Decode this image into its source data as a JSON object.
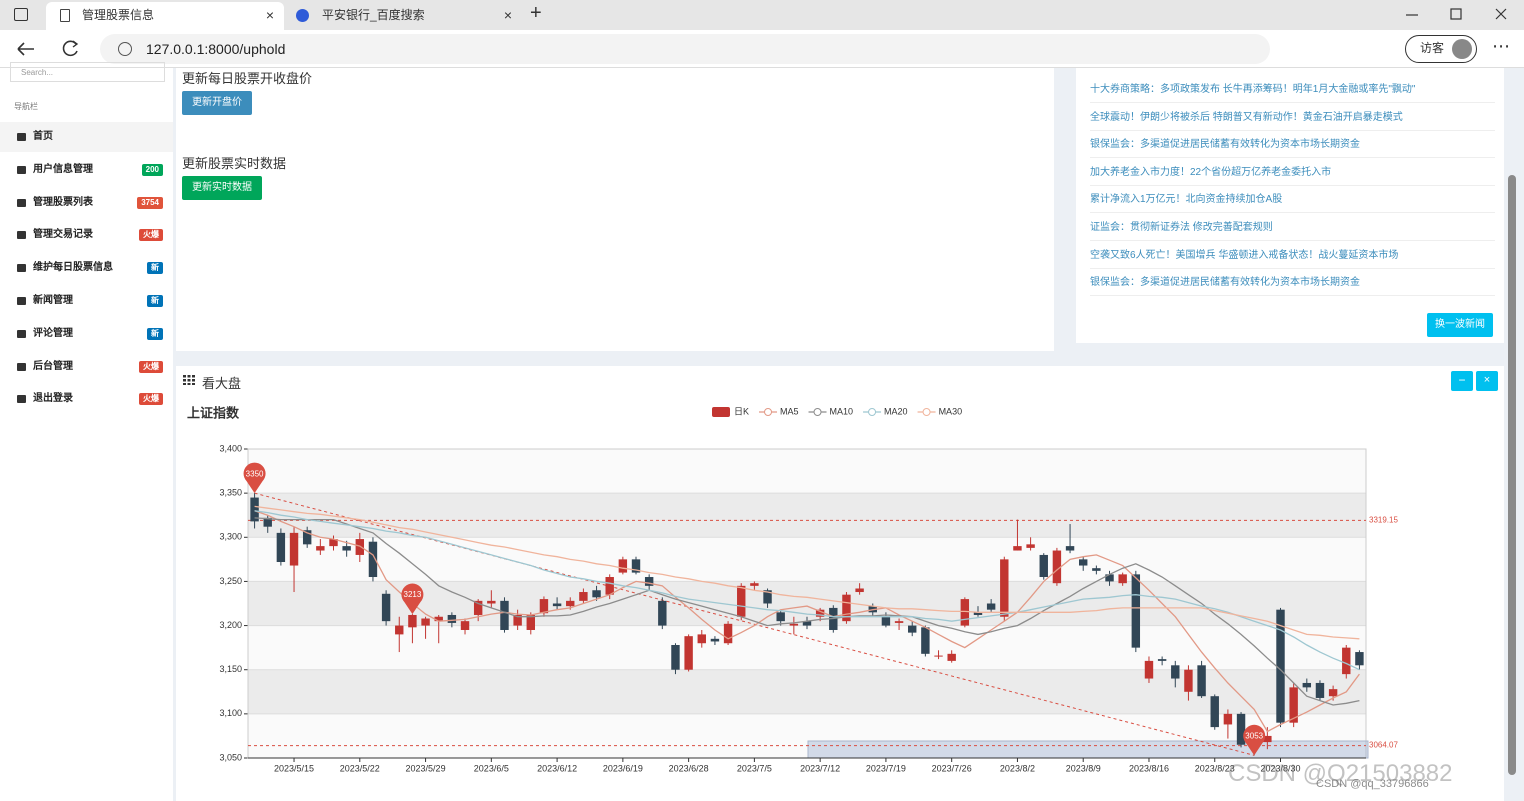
{
  "browser": {
    "tabs": [
      "管理股票信息",
      "平安银行_百度搜索"
    ],
    "url": "127.0.0.1:8000/uphold",
    "profile": "访客"
  },
  "sidebar": {
    "search_placeholder": "Search...",
    "nav_heading": "导航栏",
    "items": [
      {
        "label": "首页"
      },
      {
        "label": "用户信息管理",
        "badge": "200",
        "color": "#00a65a"
      },
      {
        "label": "管理股票列表",
        "badge": "3754",
        "color": "#e0543b"
      },
      {
        "label": "管理交易记录",
        "badge": "火爆",
        "color": "#dd4b39"
      },
      {
        "label": "维护每日股票信息",
        "badge": "新",
        "color": "#0073b7"
      },
      {
        "label": "新闻管理",
        "badge": "新",
        "color": "#0073b7"
      },
      {
        "label": "评论管理",
        "badge": "新",
        "color": "#0073b7"
      },
      {
        "label": "后台管理",
        "badge": "火爆",
        "color": "#dd4b39"
      },
      {
        "label": "退出登录",
        "badge": "火爆",
        "color": "#dd4b39"
      }
    ]
  },
  "update_panel": {
    "sections": [
      {
        "title": "更新每日股票开收盘价",
        "button": "更新开盘价",
        "color": "#3c8dbc"
      },
      {
        "title": "更新股票实时数据",
        "button": "更新实时数据",
        "color": "#00a65a"
      }
    ]
  },
  "news": {
    "items": [
      "十大券商策略：多项政策发布 长牛再添筹码！明年1月大金融或率先\"飘动\"",
      "全球震动！伊朗少将被杀后 特朗普又有新动作！黄金石油开启暴走模式",
      "银保监会：多渠道促进居民储蓄有效转化为资本市场长期资金",
      "加大养老金入市力度！22个省份超万亿养老金委托入市",
      "累计净流入1万亿元！北向资金持续加仓A股",
      "证监会：贯彻新证券法 修改完善配套规则",
      "空袭又致6人死亡！美国增兵 华盛顿进入戒备状态！战火蔓延资本市场",
      "银保监会：多渠道促进居民储蓄有效转化为资本市场长期资金"
    ],
    "button": "换一波新闻"
  },
  "market_panel": {
    "title": "看大盘"
  },
  "watermark": "CSDN @Q21503882",
  "watermark_small": "CSDN @qq_33796866",
  "chart_data": {
    "type": "candlestick",
    "title": "上证指数",
    "candle_name": "日K",
    "up_color": "#c23531",
    "down_color": "#314656",
    "categories": [
      null,
      null,
      null,
      "2023/5/15",
      null,
      null,
      null,
      null,
      "2023/5/22",
      null,
      null,
      null,
      null,
      "2023/5/29",
      null,
      null,
      null,
      null,
      "2023/6/5",
      null,
      null,
      null,
      null,
      "2023/6/12",
      null,
      null,
      null,
      null,
      "2023/6/19",
      null,
      null,
      null,
      null,
      "2023/6/28",
      null,
      null,
      null,
      null,
      "2023/7/5",
      null,
      null,
      null,
      null,
      "2023/7/12",
      null,
      null,
      null,
      null,
      "2023/7/19",
      null,
      null,
      null,
      null,
      "2023/7/26",
      null,
      null,
      null,
      null,
      "2023/8/2",
      null,
      null,
      null,
      null,
      "2023/8/9",
      null,
      null,
      null,
      null,
      "2023/8/16",
      null,
      null,
      null,
      null,
      "2023/8/23",
      null,
      null,
      null,
      null,
      "2023/8/30",
      null,
      null,
      null,
      null,
      null,
      null
    ],
    "candles": [
      [
        3345,
        3318,
        3310,
        3350
      ],
      [
        3322,
        3312,
        3305,
        3325
      ],
      [
        3305,
        3272,
        3268,
        3310
      ],
      [
        3268,
        3305,
        3238,
        3312
      ],
      [
        3308,
        3292,
        3288,
        3312
      ],
      [
        3285,
        3290,
        3280,
        3298
      ],
      [
        3290,
        3298,
        3285,
        3302
      ],
      [
        3290,
        3285,
        3278,
        3296
      ],
      [
        3280,
        3298,
        3272,
        3305
      ],
      [
        3295,
        3255,
        3250,
        3300
      ],
      [
        3236,
        3205,
        3200,
        3240
      ],
      [
        3190,
        3200,
        3170,
        3210
      ],
      [
        3198,
        3212,
        3180,
        3213
      ],
      [
        3200,
        3208,
        3185,
        3210
      ],
      [
        3205,
        3210,
        3180,
        3212
      ],
      [
        3212,
        3203,
        3198,
        3215
      ],
      [
        3195,
        3205,
        3190,
        3208
      ],
      [
        3212,
        3228,
        3205,
        3230
      ],
      [
        3225,
        3228,
        3220,
        3240
      ],
      [
        3228,
        3195,
        3192,
        3232
      ],
      [
        3200,
        3212,
        3195,
        3218
      ],
      [
        3195,
        3212,
        3190,
        3215
      ],
      [
        3214,
        3230,
        3210,
        3233
      ],
      [
        3225,
        3222,
        3218,
        3232
      ],
      [
        3222,
        3228,
        3218,
        3232
      ],
      [
        3228,
        3238,
        3225,
        3242
      ],
      [
        3240,
        3232,
        3228,
        3245
      ],
      [
        3235,
        3255,
        3230,
        3258
      ],
      [
        3260,
        3275,
        3258,
        3278
      ],
      [
        3275,
        3260,
        3258,
        3278
      ],
      [
        3255,
        3245,
        3240,
        3258
      ],
      [
        3228,
        3200,
        3196,
        3232
      ],
      [
        3178,
        3150,
        3145,
        3180
      ],
      [
        3150,
        3188,
        3148,
        3190
      ],
      [
        3180,
        3190,
        3175,
        3195
      ],
      [
        3185,
        3182,
        3178,
        3188
      ],
      [
        3180,
        3202,
        3178,
        3205
      ],
      [
        3210,
        3245,
        3206,
        3248
      ],
      [
        3245,
        3248,
        3240,
        3250
      ],
      [
        3240,
        3225,
        3220,
        3242
      ],
      [
        3215,
        3205,
        3200,
        3218
      ],
      [
        3200,
        3202,
        3190,
        3210
      ],
      [
        3205,
        3200,
        3196,
        3210
      ],
      [
        3210,
        3218,
        3205,
        3220
      ],
      [
        3220,
        3195,
        3192,
        3223
      ],
      [
        3205,
        3235,
        3202,
        3238
      ],
      [
        3238,
        3242,
        3235,
        3248
      ],
      [
        3222,
        3215,
        3210,
        3225
      ],
      [
        3210,
        3200,
        3198,
        3215
      ],
      [
        3203,
        3205,
        3195,
        3208
      ],
      [
        3200,
        3192,
        3188,
        3205
      ],
      [
        3198,
        3168,
        3165,
        3200
      ],
      [
        3165,
        3166,
        3162,
        3172
      ],
      [
        3160,
        3168,
        3158,
        3172
      ],
      [
        3200,
        3230,
        3198,
        3232
      ],
      [
        3215,
        3212,
        3210,
        3222
      ],
      [
        3225,
        3218,
        3215,
        3230
      ],
      [
        3210,
        3275,
        3205,
        3278
      ],
      [
        3285,
        3290,
        3285,
        3320
      ],
      [
        3288,
        3292,
        3285,
        3300
      ],
      [
        3280,
        3255,
        3252,
        3282
      ],
      [
        3248,
        3285,
        3245,
        3288
      ],
      [
        3290,
        3285,
        3282,
        3315
      ],
      [
        3275,
        3268,
        3262,
        3278
      ],
      [
        3265,
        3262,
        3258,
        3268
      ],
      [
        3258,
        3250,
        3245,
        3262
      ],
      [
        3248,
        3258,
        3245,
        3260
      ],
      [
        3258,
        3175,
        3170,
        3262
      ],
      [
        3140,
        3160,
        3135,
        3165
      ],
      [
        3162,
        3160,
        3155,
        3165
      ],
      [
        3155,
        3140,
        3130,
        3160
      ],
      [
        3125,
        3150,
        3115,
        3155
      ],
      [
        3155,
        3120,
        3118,
        3160
      ],
      [
        3120,
        3085,
        3082,
        3122
      ],
      [
        3088,
        3100,
        3072,
        3105
      ],
      [
        3100,
        3065,
        3062,
        3102
      ],
      [
        3070,
        3068,
        3053,
        3078
      ],
      [
        3068,
        3075,
        3060,
        3085
      ],
      [
        3218,
        3090,
        3085,
        3220
      ],
      [
        3090,
        3130,
        3085,
        3135
      ],
      [
        3135,
        3130,
        3125,
        3140
      ],
      [
        3135,
        3118,
        3115,
        3138
      ],
      [
        3120,
        3128,
        3115,
        3132
      ],
      [
        3145,
        3175,
        3140,
        3178
      ],
      [
        3170,
        3155,
        3150,
        3172
      ]
    ],
    "series": [
      {
        "name": "MA5",
        "color": "#e29986",
        "values": [
          3330,
          3325,
          3318,
          3312,
          3305,
          3300,
          3298,
          3294,
          3290,
          3280,
          3252,
          3238,
          3225,
          3213,
          3205,
          3206,
          3207,
          3210,
          3213,
          3215,
          3213,
          3212,
          3215,
          3218,
          3220,
          3225,
          3230,
          3235,
          3243,
          3250,
          3248,
          3245,
          3232,
          3220,
          3207,
          3195,
          3185,
          3192,
          3200,
          3210,
          3218,
          3220,
          3222,
          3216,
          3210,
          3213,
          3215,
          3218,
          3220,
          3212,
          3205,
          3198,
          3190,
          3182,
          3175,
          3185,
          3195,
          3205,
          3215,
          3232,
          3250,
          3263,
          3275,
          3278,
          3280,
          3274,
          3268,
          3254,
          3240,
          3225,
          3210,
          3190,
          3170,
          3152,
          3135,
          3120,
          3105,
          3080,
          3088,
          3095,
          3102,
          3110,
          3118,
          3125,
          3145
        ]
      },
      {
        "name": "MA10",
        "color": "#8c8c8c",
        "values": [
          3322,
          3321,
          3320,
          3320,
          3320,
          3320,
          3320,
          3315,
          3310,
          3305,
          3293,
          3282,
          3270,
          3258,
          3245,
          3238,
          3232,
          3225,
          3220,
          3215,
          3210,
          3210,
          3211,
          3211,
          3212,
          3216,
          3221,
          3225,
          3230,
          3235,
          3240,
          3235,
          3230,
          3226,
          3222,
          3218,
          3214,
          3210,
          3205,
          3200,
          3202,
          3203,
          3205,
          3207,
          3208,
          3210,
          3211,
          3211,
          3212,
          3211,
          3210,
          3205,
          3200,
          3197,
          3193,
          3190,
          3193,
          3197,
          3200,
          3208,
          3217,
          3225,
          3233,
          3242,
          3250,
          3258,
          3265,
          3270,
          3263,
          3255,
          3245,
          3235,
          3225,
          3213,
          3202,
          3190,
          3177,
          3163,
          3150,
          3135,
          3120,
          3115,
          3110,
          3112,
          3115
        ]
      },
      {
        "name": "MA20",
        "color": "#9ec7d1",
        "values": [
          3330,
          3328,
          3325,
          3323,
          3320,
          3318,
          3316,
          3314,
          3312,
          3310,
          3307,
          3305,
          3302,
          3300,
          3296,
          3292,
          3288,
          3284,
          3280,
          3276,
          3272,
          3268,
          3263,
          3259,
          3255,
          3253,
          3250,
          3248,
          3245,
          3243,
          3240,
          3237,
          3233,
          3230,
          3228,
          3226,
          3224,
          3222,
          3220,
          3218,
          3217,
          3215,
          3213,
          3212,
          3210,
          3210,
          3210,
          3210,
          3210,
          3210,
          3210,
          3208,
          3207,
          3205,
          3207,
          3209,
          3211,
          3213,
          3215,
          3218,
          3221,
          3224,
          3227,
          3230,
          3231,
          3232,
          3234,
          3235,
          3233,
          3232,
          3230,
          3226,
          3222,
          3219,
          3215,
          3210,
          3205,
          3200,
          3195,
          3187,
          3178,
          3170,
          3163,
          3157,
          3150
        ]
      },
      {
        "name": "MA30",
        "color": "#f0b49c",
        "values": [
          3335,
          3333,
          3331,
          3329,
          3327,
          3326,
          3324,
          3322,
          3320,
          3317,
          3314,
          3311,
          3309,
          3306,
          3303,
          3300,
          3297,
          3294,
          3291,
          3289,
          3286,
          3283,
          3280,
          3278,
          3275,
          3273,
          3270,
          3268,
          3265,
          3263,
          3260,
          3258,
          3255,
          3253,
          3250,
          3248,
          3245,
          3243,
          3240,
          3238,
          3235,
          3233,
          3232,
          3230,
          3228,
          3226,
          3224,
          3222,
          3220,
          3219,
          3219,
          3218,
          3217,
          3216,
          3216,
          3215,
          3215,
          3215,
          3215,
          3215,
          3215,
          3215,
          3215,
          3216,
          3217,
          3219,
          3220,
          3220,
          3220,
          3220,
          3220,
          3220,
          3220,
          3217,
          3214,
          3211,
          3208,
          3205,
          3200,
          3195,
          3190,
          3189,
          3187,
          3186,
          3185
        ]
      }
    ],
    "ylim": [
      3050,
      3400
    ],
    "yticks": [
      {
        "value": 3050,
        "label": "3,050"
      },
      {
        "value": 3100,
        "label": "3,100"
      },
      {
        "value": 3150,
        "label": "3,150"
      },
      {
        "value": 3200,
        "label": "3,200"
      },
      {
        "value": 3250,
        "label": "3,250"
      },
      {
        "value": 3300,
        "label": "3,300"
      },
      {
        "value": 3350,
        "label": "3,350"
      },
      {
        "value": 3400,
        "label": "3,400"
      }
    ],
    "grid": true,
    "split_area": true,
    "mark_points": [
      {
        "index": 0,
        "value": 3350
      },
      {
        "index": 12,
        "value": 3213
      },
      {
        "index": 76,
        "value": 3053
      }
    ],
    "mark_lines": [
      3319.15,
      3064.07
    ],
    "mark_color": "#d94e42"
  }
}
